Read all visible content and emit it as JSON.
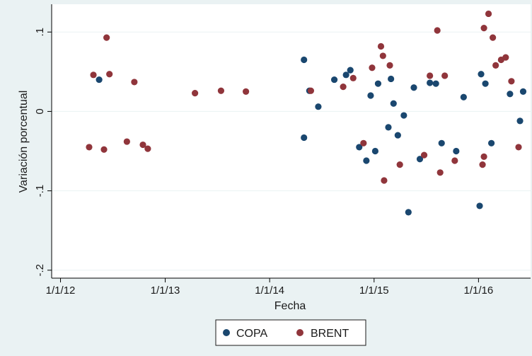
{
  "chart_data": {
    "type": "scatter",
    "title": "",
    "xlabel": "Fecha",
    "ylabel": "Variación porcentual",
    "x_ticks": [
      {
        "date": "2012-01-01",
        "label": "1/1/12"
      },
      {
        "date": "2013-01-01",
        "label": "1/1/13"
      },
      {
        "date": "2014-01-01",
        "label": "1/1/14"
      },
      {
        "date": "2015-01-01",
        "label": "1/1/15"
      },
      {
        "date": "2016-01-01",
        "label": "1/1/16"
      }
    ],
    "y_ticks": [
      {
        "value": 0.1,
        "label": ".1"
      },
      {
        "value": 0,
        "label": "0"
      },
      {
        "value": -0.1,
        "label": "-.1"
      },
      {
        "value": -0.2,
        "label": "-.2"
      }
    ],
    "xlim": [
      "2011-12-01",
      "2016-07-01"
    ],
    "ylim": [
      -0.21,
      0.135
    ],
    "grid": "horizontal",
    "legend_position": "bottom",
    "colors": {
      "COPA": "#1a476f",
      "BRENT": "#90353b"
    },
    "series": [
      {
        "name": "COPA",
        "points": [
          [
            "2012-05-15",
            0.04
          ],
          [
            "2014-05-01",
            0.065
          ],
          [
            "2014-05-01",
            -0.033
          ],
          [
            "2014-05-20",
            0.026
          ],
          [
            "2014-06-20",
            0.006
          ],
          [
            "2014-08-15",
            0.04
          ],
          [
            "2014-09-25",
            0.046
          ],
          [
            "2014-10-10",
            0.052
          ],
          [
            "2014-11-10",
            -0.045
          ],
          [
            "2014-12-05",
            -0.062
          ],
          [
            "2014-12-20",
            0.02
          ],
          [
            "2015-01-05",
            -0.05
          ],
          [
            "2015-01-15",
            0.035
          ],
          [
            "2015-02-20",
            -0.02
          ],
          [
            "2015-03-01",
            0.041
          ],
          [
            "2015-03-10",
            0.01
          ],
          [
            "2015-03-25",
            -0.03
          ],
          [
            "2015-04-15",
            -0.005
          ],
          [
            "2015-05-01",
            -0.127
          ],
          [
            "2015-05-20",
            0.03
          ],
          [
            "2015-06-10",
            -0.06
          ],
          [
            "2015-07-15",
            0.036
          ],
          [
            "2015-08-05",
            0.035
          ],
          [
            "2015-08-25",
            -0.04
          ],
          [
            "2015-10-15",
            -0.05
          ],
          [
            "2015-11-10",
            0.018
          ],
          [
            "2016-01-05",
            -0.119
          ],
          [
            "2016-01-10",
            0.047
          ],
          [
            "2016-01-25",
            0.035
          ],
          [
            "2016-02-15",
            -0.04
          ],
          [
            "2016-04-20",
            0.022
          ],
          [
            "2016-05-25",
            -0.012
          ],
          [
            "2016-06-05",
            0.025
          ]
        ]
      },
      {
        "name": "BRENT",
        "points": [
          [
            "2012-06-10",
            0.093
          ],
          [
            "2012-06-20",
            0.047
          ],
          [
            "2012-04-25",
            0.046
          ],
          [
            "2012-04-10",
            -0.045
          ],
          [
            "2012-06-01",
            -0.048
          ],
          [
            "2012-11-01",
            -0.047
          ],
          [
            "2012-09-15",
            0.037
          ],
          [
            "2015-01-25",
            0.082
          ],
          [
            "2015-02-01",
            0.07
          ],
          [
            "2015-02-05",
            -0.087
          ],
          [
            "2015-08-10",
            0.102
          ],
          [
            "2015-08-20",
            -0.077
          ],
          [
            "2016-01-20",
            0.105
          ],
          [
            "2016-02-05",
            0.123
          ],
          [
            "2016-02-20",
            0.093
          ],
          [
            "2016-01-15",
            -0.067
          ],
          [
            "2016-01-20",
            -0.057
          ],
          [
            "2015-04-01",
            -0.067
          ],
          [
            "2015-02-25",
            0.058
          ],
          [
            "2014-12-25",
            0.055
          ],
          [
            "2014-10-20",
            0.042
          ],
          [
            "2016-03-20",
            0.065
          ],
          [
            "2016-04-05",
            0.068
          ],
          [
            "2016-03-01",
            0.058
          ],
          [
            "2015-07-15",
            0.045
          ],
          [
            "2015-09-05",
            0.045
          ],
          [
            "2015-10-10",
            -0.062
          ],
          [
            "2016-04-25",
            0.038
          ],
          [
            "2016-05-20",
            -0.045
          ],
          [
            "2015-06-25",
            -0.055
          ],
          [
            "2014-11-25",
            -0.04
          ],
          [
            "2014-09-15",
            0.031
          ],
          [
            "2014-05-25",
            0.026
          ],
          [
            "2013-07-15",
            0.026
          ],
          [
            "2013-10-10",
            0.025
          ],
          [
            "2012-08-20",
            -0.038
          ],
          [
            "2012-10-15",
            -0.042
          ],
          [
            "2013-04-15",
            0.023
          ]
        ]
      }
    ]
  },
  "legend": {
    "items": [
      {
        "label": "COPA"
      },
      {
        "label": "BRENT"
      }
    ]
  }
}
